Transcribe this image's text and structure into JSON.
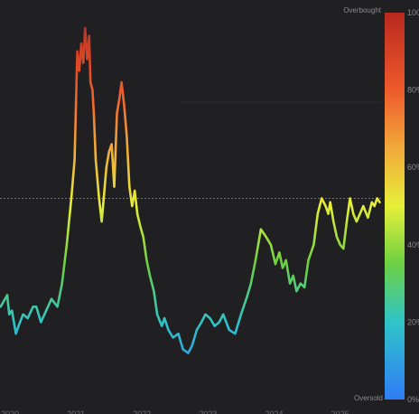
{
  "chart_data": {
    "type": "line",
    "x_labels": [
      "2020",
      "2021",
      "2022",
      "2023",
      "2024",
      "2025"
    ],
    "ylim": [
      0,
      100
    ],
    "reference_line": 52,
    "colorbar": {
      "ticks": [
        "0%",
        "20%",
        "40%",
        "60%",
        "80%",
        "100%"
      ],
      "top_label": "Overbought",
      "bottom_label": "Oversold",
      "stops": [
        {
          "at": 0,
          "color": "#2f7cf6"
        },
        {
          "at": 0.2,
          "color": "#2fc4c8"
        },
        {
          "at": 0.35,
          "color": "#6cd043"
        },
        {
          "at": 0.5,
          "color": "#e6ef38"
        },
        {
          "at": 0.65,
          "color": "#f2a93a"
        },
        {
          "at": 0.8,
          "color": "#ee5a2c"
        },
        {
          "at": 1,
          "color": "#b8281e"
        }
      ]
    },
    "grid": false,
    "x": [
      2019.86,
      2019.96,
      2019.99,
      2020.03,
      2020.09,
      2020.13,
      2020.2,
      2020.27,
      2020.35,
      2020.4,
      2020.47,
      2020.55,
      2020.63,
      2020.72,
      2020.79,
      2020.86,
      2020.93,
      2020.98,
      2021.02,
      2021.05,
      2021.08,
      2021.11,
      2021.14,
      2021.17,
      2021.2,
      2021.22,
      2021.25,
      2021.27,
      2021.3,
      2021.35,
      2021.39,
      2021.43,
      2021.46,
      2021.5,
      2021.54,
      2021.58,
      2021.62,
      2021.66,
      2021.69,
      2021.73,
      2021.77,
      2021.81,
      2021.85,
      2021.89,
      2021.93,
      2021.97,
      2022.02,
      2022.07,
      2022.12,
      2022.18,
      2022.23,
      2022.3,
      2022.34,
      2022.4,
      2022.47,
      2022.55,
      2022.62,
      2022.7,
      2022.76,
      2022.83,
      2022.9,
      2022.96,
      2023.03,
      2023.1,
      2023.17,
      2023.23,
      2023.32,
      2023.41,
      2023.5,
      2023.58,
      2023.65,
      2023.72,
      2023.8,
      2023.88,
      2023.95,
      2024.02,
      2024.08,
      2024.13,
      2024.18,
      2024.24,
      2024.29,
      2024.34,
      2024.4,
      2024.46,
      2024.52,
      2024.6,
      2024.66,
      2024.72,
      2024.78,
      2024.82,
      2024.85,
      2024.9,
      2024.95,
      2025.0,
      2025.05,
      2025.1,
      2025.15,
      2025.2,
      2025.25,
      2025.3,
      2025.35,
      2025.42,
      2025.48,
      2025.52,
      2025.56,
      2025.6
    ],
    "y": [
      24,
      27,
      22,
      23,
      17,
      19,
      22,
      21,
      24,
      24,
      20,
      23,
      26,
      24,
      30,
      40,
      52,
      62,
      90,
      85,
      92,
      87,
      96,
      88,
      94,
      82,
      80,
      74,
      62,
      52,
      46,
      54,
      60,
      64,
      66,
      55,
      74,
      78,
      82,
      76,
      68,
      55,
      50,
      54,
      48,
      45,
      42,
      36,
      32,
      28,
      22,
      19,
      21,
      18,
      16,
      17,
      13,
      12,
      14,
      18,
      20,
      22,
      21,
      19,
      20,
      22,
      18,
      17,
      22,
      26,
      30,
      36,
      44,
      42,
      40,
      35,
      38,
      34,
      36,
      30,
      32,
      28,
      30,
      29,
      36,
      40,
      48,
      52,
      50,
      48,
      51,
      46,
      42,
      40,
      39,
      46,
      52,
      48,
      46,
      48,
      50,
      47,
      51,
      50,
      52,
      51
    ],
    "xlim": [
      2019.85,
      2025.62
    ]
  }
}
